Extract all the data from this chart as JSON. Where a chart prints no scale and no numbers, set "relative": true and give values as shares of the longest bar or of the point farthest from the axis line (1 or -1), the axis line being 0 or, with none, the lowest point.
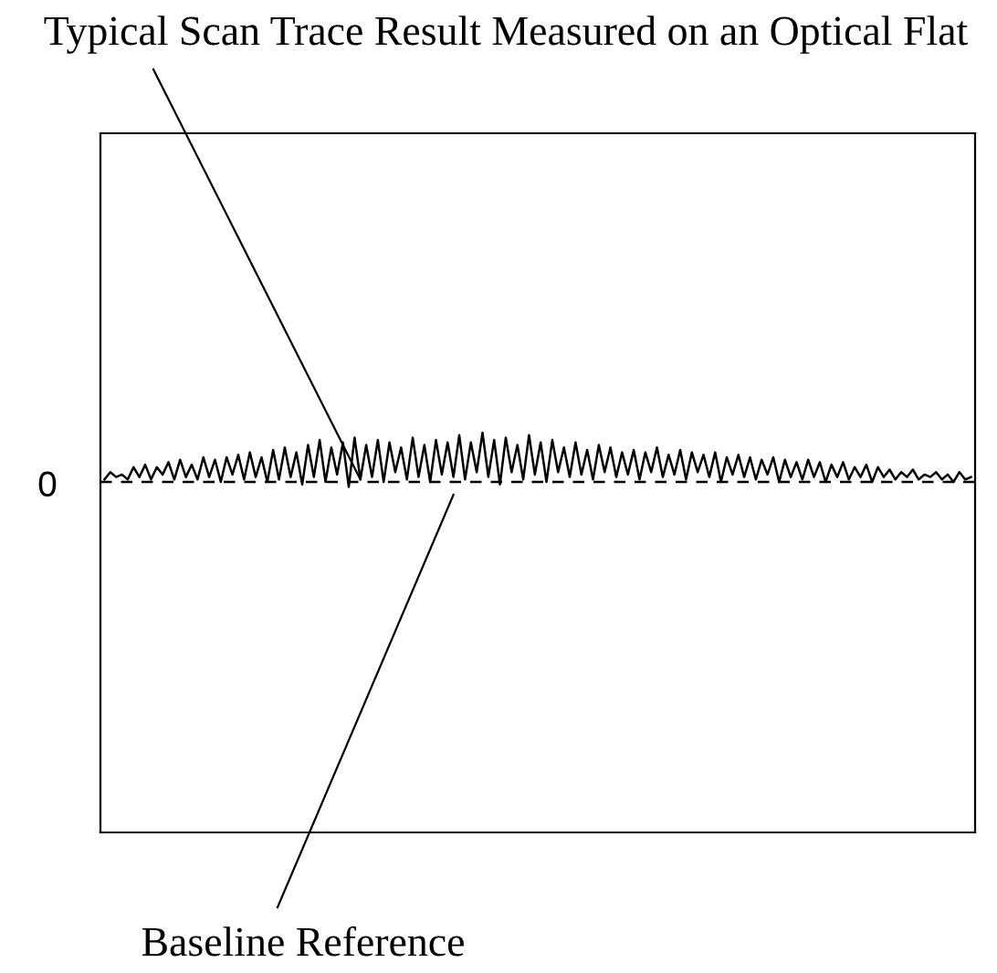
{
  "chart_data": {
    "type": "line",
    "title": "Typical Scan Trace Result Measured on an Optical Flat",
    "relative": true,
    "categories": [
      null,
      null,
      null,
      null,
      null,
      null,
      null,
      null,
      null,
      null,
      null,
      null,
      null,
      null,
      null,
      null,
      null,
      null,
      null,
      null,
      null,
      null,
      null,
      null,
      null,
      null,
      null,
      null,
      null,
      null,
      null,
      null,
      null,
      null,
      null,
      null,
      null,
      null,
      null,
      null,
      null,
      null,
      null,
      null,
      null,
      null,
      null,
      null,
      null,
      null,
      null,
      null,
      null,
      null,
      null,
      null,
      null,
      null,
      null,
      null,
      null,
      null,
      null,
      null,
      null,
      null,
      null,
      null,
      null,
      null,
      null,
      null,
      null,
      null,
      null,
      null,
      null,
      null,
      null,
      null,
      null,
      null,
      null,
      null,
      null,
      null,
      null,
      null,
      null,
      null,
      null,
      null,
      null,
      null,
      null,
      null,
      null,
      null,
      null,
      null,
      null,
      null,
      null,
      null,
      null,
      null,
      null,
      null,
      null,
      null,
      null,
      null,
      null,
      null,
      null,
      null,
      null,
      null,
      null,
      null,
      null,
      null,
      null,
      null,
      null,
      null,
      null,
      null,
      null,
      null,
      null,
      null,
      null,
      null,
      null,
      null,
      null,
      null,
      null,
      null,
      null,
      null,
      null,
      null,
      null,
      null,
      null,
      null,
      null,
      null
    ],
    "series": [
      {
        "color": "#000000",
        "values": [
          0.05,
          0.2,
          0.1,
          0.15,
          0.05,
          0.3,
          0.1,
          0.35,
          0.05,
          0.3,
          0.15,
          0.4,
          0.05,
          0.45,
          0.1,
          0.35,
          0.05,
          0.5,
          0.1,
          0.45,
          0.0,
          0.5,
          0.15,
          0.55,
          0.05,
          0.6,
          0.1,
          0.5,
          0.0,
          0.65,
          0.05,
          0.7,
          0.1,
          0.6,
          -0.05,
          0.75,
          0.1,
          0.85,
          0.0,
          0.7,
          0.15,
          0.8,
          -0.1,
          0.9,
          0.05,
          0.75,
          0.1,
          0.85,
          0.0,
          0.8,
          0.2,
          0.7,
          0.05,
          0.9,
          0.1,
          0.75,
          0.0,
          0.85,
          0.15,
          0.8,
          0.1,
          0.95,
          0.05,
          0.8,
          0.2,
          1.0,
          0.1,
          0.85,
          -0.05,
          0.9,
          0.2,
          0.75,
          0.05,
          0.95,
          0.15,
          0.8,
          0.0,
          0.85,
          0.2,
          0.7,
          0.1,
          0.8,
          0.15,
          0.65,
          0.05,
          0.75,
          0.2,
          0.7,
          0.1,
          0.6,
          0.15,
          0.65,
          0.05,
          0.6,
          0.2,
          0.7,
          0.1,
          0.55,
          0.15,
          0.65,
          0.05,
          0.6,
          0.2,
          0.55,
          0.1,
          0.6,
          0.0,
          0.5,
          0.15,
          0.55,
          0.1,
          0.5,
          0.05,
          0.45,
          0.15,
          0.5,
          0.0,
          0.45,
          0.1,
          0.4,
          0.05,
          0.45,
          0.1,
          0.4,
          0.0,
          0.35,
          0.1,
          0.4,
          0.05,
          0.3,
          0.1,
          0.35,
          0.0,
          0.3,
          0.1,
          0.25,
          0.05,
          0.2,
          0.1,
          0.25,
          0.05,
          0.15,
          0.1,
          0.2,
          0.05,
          0.15,
          0.0,
          0.2,
          0.05,
          0.1
        ]
      }
    ],
    "ref_lines": [
      {
        "axis": "y",
        "value": 0,
        "label": "Baseline Reference",
        "line_style": "dashed",
        "color": "#000000"
      }
    ],
    "annotations": [
      "0"
    ],
    "line_style": "solid",
    "marker": "none",
    "legend": false
  }
}
